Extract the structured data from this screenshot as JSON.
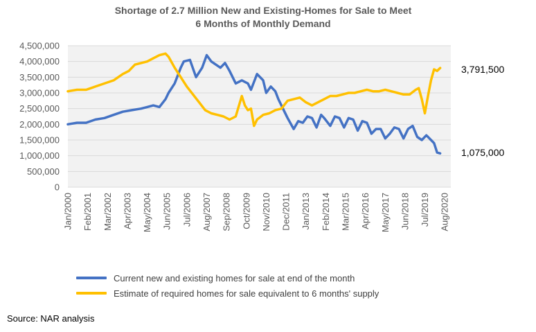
{
  "chart_data": {
    "type": "line",
    "title": "Shortage of 2.7 Million New and Existing-Homes for Sale to Meet",
    "subtitle": "6 Months of Monthly Demand",
    "ylim": [
      0,
      4500000
    ],
    "yticks": [
      "4,500,000",
      "4,000,000",
      "3,500,000",
      "3,000,000",
      "2,500,000",
      "2,000,000",
      "1,500,000",
      "1,000,000",
      "500,000",
      "0"
    ],
    "x_tick_labels": [
      "Jan/2000",
      "Feb/2001",
      "Mar/2002",
      "Apr/2003",
      "May/2004",
      "Jun/2005",
      "Jul/2006",
      "Aug/2007",
      "Sep/2008",
      "Oct/2009",
      "Nov/2010",
      "Dec/2011",
      "Jan/2013",
      "Feb/2014",
      "Mar/2015",
      "Apr/2016",
      "May/2017",
      "Jun/2018",
      "Jul/2019",
      "Aug/2020"
    ],
    "x_start": "Jan/2000",
    "x_end": "Dec/2020",
    "grid": "horizontal",
    "series": [
      {
        "name": "Current new and existing homes for sale at end of the month",
        "color": "#4472C4",
        "end_label": "1,075,000",
        "keypoints": [
          [
            0,
            2000000
          ],
          [
            6,
            2050000
          ],
          [
            12,
            2050000
          ],
          [
            18,
            2150000
          ],
          [
            24,
            2200000
          ],
          [
            30,
            2300000
          ],
          [
            36,
            2400000
          ],
          [
            42,
            2450000
          ],
          [
            48,
            2500000
          ],
          [
            52,
            2550000
          ],
          [
            56,
            2600000
          ],
          [
            60,
            2550000
          ],
          [
            64,
            2800000
          ],
          [
            66,
            3000000
          ],
          [
            70,
            3300000
          ],
          [
            74,
            3800000
          ],
          [
            76,
            4000000
          ],
          [
            80,
            4050000
          ],
          [
            84,
            3500000
          ],
          [
            88,
            3800000
          ],
          [
            91,
            4200000
          ],
          [
            94,
            4000000
          ],
          [
            97,
            3900000
          ],
          [
            100,
            3800000
          ],
          [
            103,
            3950000
          ],
          [
            106,
            3700000
          ],
          [
            110,
            3300000
          ],
          [
            114,
            3400000
          ],
          [
            118,
            3300000
          ],
          [
            120,
            3100000
          ],
          [
            124,
            3600000
          ],
          [
            128,
            3400000
          ],
          [
            130,
            3000000
          ],
          [
            133,
            3200000
          ],
          [
            136,
            3050000
          ],
          [
            138,
            2800000
          ],
          [
            141,
            2500000
          ],
          [
            144,
            2200000
          ],
          [
            148,
            1850000
          ],
          [
            151,
            2100000
          ],
          [
            154,
            2050000
          ],
          [
            157,
            2250000
          ],
          [
            160,
            2200000
          ],
          [
            163,
            1900000
          ],
          [
            166,
            2300000
          ],
          [
            168,
            2200000
          ],
          [
            172,
            1950000
          ],
          [
            175,
            2250000
          ],
          [
            178,
            2200000
          ],
          [
            181,
            1900000
          ],
          [
            184,
            2200000
          ],
          [
            187,
            2150000
          ],
          [
            190,
            1800000
          ],
          [
            193,
            2100000
          ],
          [
            196,
            2050000
          ],
          [
            199,
            1700000
          ],
          [
            202,
            1850000
          ],
          [
            205,
            1850000
          ],
          [
            208,
            1550000
          ],
          [
            211,
            1700000
          ],
          [
            214,
            1900000
          ],
          [
            217,
            1850000
          ],
          [
            220,
            1550000
          ],
          [
            223,
            1850000
          ],
          [
            226,
            1950000
          ],
          [
            229,
            1600000
          ],
          [
            232,
            1500000
          ],
          [
            235,
            1650000
          ],
          [
            238,
            1500000
          ],
          [
            240,
            1400000
          ],
          [
            242,
            1100000
          ],
          [
            244,
            1075000
          ]
        ]
      },
      {
        "name": "Estimate of required homes for sale equivalent to 6 months' supply",
        "color": "#FFC000",
        "end_label": "3,791,500",
        "keypoints": [
          [
            0,
            3050000
          ],
          [
            6,
            3100000
          ],
          [
            12,
            3100000
          ],
          [
            18,
            3200000
          ],
          [
            24,
            3300000
          ],
          [
            30,
            3400000
          ],
          [
            36,
            3600000
          ],
          [
            40,
            3700000
          ],
          [
            44,
            3900000
          ],
          [
            48,
            3950000
          ],
          [
            52,
            4000000
          ],
          [
            56,
            4100000
          ],
          [
            60,
            4200000
          ],
          [
            64,
            4250000
          ],
          [
            66,
            4150000
          ],
          [
            70,
            3800000
          ],
          [
            74,
            3500000
          ],
          [
            78,
            3200000
          ],
          [
            82,
            2950000
          ],
          [
            86,
            2700000
          ],
          [
            90,
            2450000
          ],
          [
            94,
            2350000
          ],
          [
            98,
            2300000
          ],
          [
            102,
            2250000
          ],
          [
            106,
            2150000
          ],
          [
            110,
            2250000
          ],
          [
            114,
            2900000
          ],
          [
            116,
            2600000
          ],
          [
            118,
            2450000
          ],
          [
            120,
            2500000
          ],
          [
            122,
            1950000
          ],
          [
            124,
            2150000
          ],
          [
            128,
            2300000
          ],
          [
            132,
            2350000
          ],
          [
            136,
            2450000
          ],
          [
            140,
            2500000
          ],
          [
            144,
            2750000
          ],
          [
            148,
            2800000
          ],
          [
            152,
            2850000
          ],
          [
            156,
            2700000
          ],
          [
            160,
            2600000
          ],
          [
            164,
            2700000
          ],
          [
            168,
            2800000
          ],
          [
            172,
            2900000
          ],
          [
            176,
            2900000
          ],
          [
            180,
            2950000
          ],
          [
            184,
            3000000
          ],
          [
            188,
            3000000
          ],
          [
            192,
            3050000
          ],
          [
            196,
            3100000
          ],
          [
            200,
            3050000
          ],
          [
            204,
            3050000
          ],
          [
            208,
            3100000
          ],
          [
            212,
            3050000
          ],
          [
            216,
            3000000
          ],
          [
            220,
            2950000
          ],
          [
            224,
            2950000
          ],
          [
            228,
            3100000
          ],
          [
            230,
            3150000
          ],
          [
            232,
            2800000
          ],
          [
            234,
            2350000
          ],
          [
            236,
            2900000
          ],
          [
            238,
            3400000
          ],
          [
            240,
            3750000
          ],
          [
            242,
            3700000
          ],
          [
            244,
            3791500
          ]
        ]
      }
    ]
  },
  "source": "Source: NAR analysis"
}
